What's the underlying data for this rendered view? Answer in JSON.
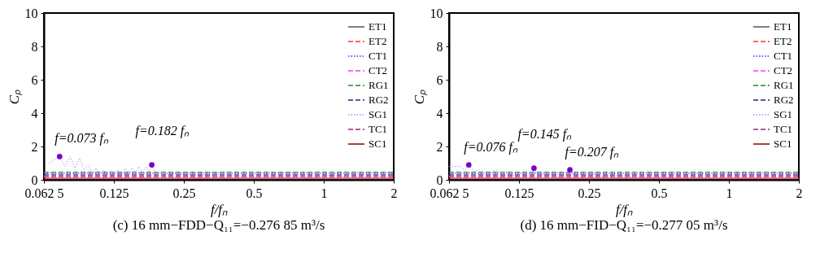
{
  "chart_data": [
    {
      "type": "line",
      "title": "(c) 16 mm−FDD−Q₁₁=−0.276 85 m³/s",
      "xlabel": "f/fₙ",
      "ylabel": "Cₚ",
      "log": "x",
      "xlim": [
        0.0625,
        2
      ],
      "xticks": [
        {
          "value": 0.0625,
          "label": "0.062 5"
        },
        0.125,
        0.25,
        0.5,
        1,
        2
      ],
      "ylim": [
        0,
        10
      ],
      "yticks": [
        0,
        2,
        4,
        6,
        8,
        10
      ],
      "grid": false,
      "legend": "top right",
      "marker": "none",
      "annotations": [
        {
          "text": "f=0.073 fₙ",
          "x": 0.073,
          "y": 1.4
        },
        {
          "text": "f=0.182 fₙ",
          "x": 0.182,
          "y": 0.9
        }
      ],
      "series": [
        {
          "name": "ET1",
          "color": "#555555",
          "line_style": "solid",
          "x": [
            0.0625,
            0.08,
            0.1,
            0.125,
            0.16,
            0.2,
            0.25,
            0.32,
            0.4,
            0.5,
            0.63,
            0.8,
            1,
            1.26,
            1.6,
            2
          ],
          "values": [
            0.1,
            0.1,
            0.1,
            0.1,
            0.1,
            0.1,
            0.1,
            0.1,
            0.1,
            0.1,
            0.1,
            0.1,
            0.1,
            0.1,
            0.1,
            0.1
          ]
        },
        {
          "name": "ET2",
          "color": "#ff3333",
          "line_style": "dashed",
          "x": [
            0.0625,
            0.08,
            0.1,
            0.125,
            0.16,
            0.2,
            0.25,
            0.32,
            0.4,
            0.5,
            0.63,
            0.8,
            1,
            1.26,
            1.6,
            2
          ],
          "values": [
            0.16,
            0.16,
            0.16,
            0.16,
            0.16,
            0.16,
            0.16,
            0.16,
            0.16,
            0.16,
            0.16,
            0.16,
            0.16,
            0.16,
            0.16,
            0.16
          ]
        },
        {
          "name": "CT1",
          "color": "#3333ff",
          "line_style": "dotted",
          "x": [
            0.0625,
            0.08,
            0.1,
            0.125,
            0.16,
            0.2,
            0.25,
            0.32,
            0.4,
            0.5,
            0.63,
            0.8,
            1,
            1.26,
            1.6,
            2
          ],
          "values": [
            0.4,
            0.4,
            0.4,
            0.4,
            0.4,
            0.4,
            0.4,
            0.4,
            0.4,
            0.4,
            0.4,
            0.4,
            0.4,
            0.4,
            0.4,
            0.4
          ]
        },
        {
          "name": "CT2",
          "color": "#ff33ff",
          "line_style": "dashed",
          "x": [
            0.0625,
            0.08,
            0.1,
            0.125,
            0.16,
            0.2,
            0.25,
            0.32,
            0.4,
            0.5,
            0.63,
            0.8,
            1,
            1.26,
            1.6,
            2
          ],
          "values": [
            0.22,
            0.22,
            0.22,
            0.22,
            0.22,
            0.22,
            0.22,
            0.22,
            0.22,
            0.22,
            0.22,
            0.22,
            0.22,
            0.22,
            0.22,
            0.22
          ]
        },
        {
          "name": "RG1",
          "color": "#228822",
          "line_style": "dashed",
          "x": [
            0.0625,
            0.08,
            0.1,
            0.125,
            0.16,
            0.2,
            0.25,
            0.32,
            0.4,
            0.5,
            0.63,
            0.8,
            1,
            1.26,
            1.6,
            2
          ],
          "values": [
            0.46,
            0.46,
            0.46,
            0.46,
            0.46,
            0.46,
            0.46,
            0.46,
            0.46,
            0.46,
            0.46,
            0.46,
            0.46,
            0.46,
            0.46,
            0.46
          ]
        },
        {
          "name": "RG2",
          "color": "#222288",
          "line_style": "dashed",
          "x": [
            0.0625,
            0.08,
            0.1,
            0.125,
            0.16,
            0.2,
            0.25,
            0.32,
            0.4,
            0.5,
            0.63,
            0.8,
            1,
            1.26,
            1.6,
            2
          ],
          "values": [
            0.34,
            0.34,
            0.34,
            0.34,
            0.34,
            0.34,
            0.34,
            0.34,
            0.34,
            0.34,
            0.34,
            0.34,
            0.34,
            0.34,
            0.34,
            0.34
          ]
        },
        {
          "name": "SG1",
          "color": "#bb88ff",
          "line_style": "dotted",
          "x": [
            0.066,
            0.073,
            0.077,
            0.081,
            0.085,
            0.089,
            0.093,
            0.097,
            0.101,
            0.105,
            0.109,
            0.113,
            0.117,
            0.121,
            0.126,
            0.13,
            0.135,
            0.14,
            0.145,
            0.15,
            0.155,
            0.16,
            0.166,
            0.172,
            0.177,
            0.182,
            0.19,
            0.2,
            0.21,
            0.22,
            0.24,
            0.26,
            0.28,
            0.31,
            0.35,
            0.4,
            0.5,
            0.6,
            0.8,
            1.0,
            1.1,
            1.3,
            1.6,
            2.0
          ],
          "values": [
            1.0,
            1.4,
            0.8,
            1.4,
            0.7,
            1.3,
            0.6,
            0.9,
            0.4,
            0.7,
            0.4,
            0.6,
            0.3,
            0.6,
            0.35,
            0.6,
            0.3,
            0.7,
            0.35,
            0.75,
            0.4,
            0.8,
            0.45,
            0.8,
            0.5,
            0.9,
            0.4,
            0.5,
            0.3,
            0.45,
            0.3,
            0.4,
            0.25,
            0.3,
            0.2,
            0.25,
            0.15,
            0.2,
            0.15,
            0.2,
            0.3,
            0.15,
            0.2,
            0.2
          ]
        },
        {
          "name": "TC1",
          "color": "#992288",
          "line_style": "dashed",
          "x": [
            0.0625,
            0.08,
            0.1,
            0.125,
            0.16,
            0.2,
            0.25,
            0.32,
            0.4,
            0.5,
            0.63,
            0.8,
            1,
            1.26,
            1.6,
            2
          ],
          "values": [
            0.28,
            0.28,
            0.28,
            0.28,
            0.28,
            0.28,
            0.28,
            0.28,
            0.28,
            0.28,
            0.28,
            0.28,
            0.28,
            0.28,
            0.28,
            0.28
          ]
        },
        {
          "name": "SC1",
          "color": "#8b0000",
          "line_style": "solid",
          "x": [
            0.0625,
            0.08,
            0.1,
            0.125,
            0.16,
            0.2,
            0.25,
            0.32,
            0.4,
            0.5,
            0.63,
            0.8,
            1,
            1.26,
            1.6,
            2
          ],
          "values": [
            0.04,
            0.04,
            0.04,
            0.04,
            0.04,
            0.04,
            0.04,
            0.04,
            0.04,
            0.04,
            0.04,
            0.04,
            0.04,
            0.04,
            0.04,
            0.04
          ]
        }
      ]
    },
    {
      "type": "line",
      "title": "(d) 16 mm−FID−Q₁₁=−0.277 05 m³/s",
      "xlabel": "f/fₙ",
      "ylabel": "Cₚ",
      "log": "x",
      "xlim": [
        0.0625,
        2
      ],
      "xticks": [
        {
          "value": 0.0625,
          "label": "0.062 5"
        },
        0.125,
        0.25,
        0.5,
        1,
        2
      ],
      "ylim": [
        0,
        10
      ],
      "yticks": [
        0,
        2,
        4,
        6,
        8,
        10
      ],
      "grid": false,
      "legend": "top right",
      "marker": "none",
      "annotations": [
        {
          "text": "f=0.076 fₙ",
          "x": 0.076,
          "y": 0.9
        },
        {
          "text": "f=0.145 fₙ",
          "x": 0.145,
          "y": 0.7
        },
        {
          "text": "f=0.207 fₙ",
          "x": 0.207,
          "y": 0.6
        }
      ],
      "series": [
        {
          "name": "ET1",
          "color": "#555555",
          "line_style": "solid",
          "x": [
            0.0625,
            0.08,
            0.1,
            0.125,
            0.16,
            0.2,
            0.25,
            0.32,
            0.4,
            0.5,
            0.63,
            0.8,
            1,
            1.26,
            1.6,
            2
          ],
          "values": [
            0.1,
            0.1,
            0.1,
            0.1,
            0.1,
            0.1,
            0.1,
            0.1,
            0.1,
            0.1,
            0.1,
            0.1,
            0.1,
            0.1,
            0.1,
            0.1
          ]
        },
        {
          "name": "ET2",
          "color": "#ff3333",
          "line_style": "dashed",
          "x": [
            0.0625,
            0.08,
            0.1,
            0.125,
            0.16,
            0.2,
            0.25,
            0.32,
            0.4,
            0.5,
            0.63,
            0.8,
            1,
            1.26,
            1.6,
            2
          ],
          "values": [
            0.16,
            0.16,
            0.16,
            0.16,
            0.16,
            0.16,
            0.16,
            0.16,
            0.16,
            0.16,
            0.16,
            0.16,
            0.16,
            0.16,
            0.16,
            0.16
          ]
        },
        {
          "name": "CT1",
          "color": "#3333ff",
          "line_style": "dotted",
          "x": [
            0.0625,
            0.08,
            0.1,
            0.125,
            0.16,
            0.2,
            0.25,
            0.32,
            0.4,
            0.5,
            0.63,
            0.8,
            1,
            1.26,
            1.6,
            2
          ],
          "values": [
            0.4,
            0.4,
            0.4,
            0.4,
            0.4,
            0.4,
            0.4,
            0.4,
            0.4,
            0.4,
            0.4,
            0.4,
            0.4,
            0.4,
            0.4,
            0.4
          ]
        },
        {
          "name": "CT2",
          "color": "#ff33ff",
          "line_style": "dashed",
          "x": [
            0.0625,
            0.08,
            0.1,
            0.125,
            0.16,
            0.2,
            0.25,
            0.32,
            0.4,
            0.5,
            0.63,
            0.8,
            1,
            1.26,
            1.6,
            2
          ],
          "values": [
            0.22,
            0.22,
            0.22,
            0.22,
            0.22,
            0.22,
            0.22,
            0.22,
            0.22,
            0.22,
            0.22,
            0.22,
            0.22,
            0.22,
            0.22,
            0.22
          ]
        },
        {
          "name": "RG1",
          "color": "#228822",
          "line_style": "dashed",
          "x": [
            0.0625,
            0.08,
            0.1,
            0.125,
            0.16,
            0.2,
            0.25,
            0.32,
            0.4,
            0.5,
            0.63,
            0.8,
            1,
            1.26,
            1.6,
            2
          ],
          "values": [
            0.46,
            0.46,
            0.46,
            0.46,
            0.46,
            0.46,
            0.46,
            0.46,
            0.46,
            0.46,
            0.46,
            0.46,
            0.46,
            0.46,
            0.46,
            0.46
          ]
        },
        {
          "name": "RG2",
          "color": "#222288",
          "line_style": "dashed",
          "x": [
            0.0625,
            0.08,
            0.1,
            0.125,
            0.16,
            0.2,
            0.25,
            0.32,
            0.4,
            0.5,
            0.63,
            0.8,
            1,
            1.26,
            1.6,
            2
          ],
          "values": [
            0.34,
            0.34,
            0.34,
            0.34,
            0.34,
            0.34,
            0.34,
            0.34,
            0.34,
            0.34,
            0.34,
            0.34,
            0.34,
            0.34,
            0.34,
            0.34
          ]
        },
        {
          "name": "SG1",
          "color": "#bb88ff",
          "line_style": "dotted",
          "x": [
            0.0625,
            0.07,
            0.073,
            0.076,
            0.08,
            0.085,
            0.09,
            0.095,
            0.1,
            0.105,
            0.11,
            0.115,
            0.12,
            0.125,
            0.13,
            0.135,
            0.14,
            0.145,
            0.15,
            0.155,
            0.16,
            0.17,
            0.18,
            0.19,
            0.2,
            0.207,
            0.215,
            0.225,
            0.24,
            0.26,
            0.28,
            0.32,
            0.4,
            0.5,
            0.7,
            1,
            1.4,
            2
          ],
          "values": [
            0.8,
            0.8,
            0.6,
            0.9,
            0.5,
            0.6,
            0.3,
            0.5,
            0.6,
            0.4,
            0.5,
            0.25,
            0.3,
            0.1,
            0.2,
            0.15,
            0.3,
            0.7,
            0.3,
            0.5,
            0.2,
            0.3,
            0.15,
            0.25,
            0.3,
            0.6,
            0.3,
            0.4,
            0.25,
            0.35,
            0.2,
            0.25,
            0.15,
            0.15,
            0.1,
            0.12,
            0.1,
            0.1
          ]
        },
        {
          "name": "TC1",
          "color": "#992288",
          "line_style": "dashed",
          "x": [
            0.0625,
            0.08,
            0.1,
            0.125,
            0.16,
            0.2,
            0.25,
            0.32,
            0.4,
            0.5,
            0.63,
            0.8,
            1,
            1.26,
            1.6,
            2
          ],
          "values": [
            0.28,
            0.28,
            0.28,
            0.28,
            0.28,
            0.28,
            0.28,
            0.28,
            0.28,
            0.28,
            0.28,
            0.28,
            0.28,
            0.28,
            0.28,
            0.28
          ]
        },
        {
          "name": "SC1",
          "color": "#8b0000",
          "line_style": "solid",
          "x": [
            0.0625,
            0.08,
            0.1,
            0.125,
            0.16,
            0.2,
            0.25,
            0.32,
            0.4,
            0.5,
            0.63,
            0.8,
            1,
            1.26,
            1.6,
            2
          ],
          "values": [
            0.04,
            0.04,
            0.04,
            0.04,
            0.04,
            0.04,
            0.04,
            0.04,
            0.04,
            0.04,
            0.04,
            0.04,
            0.04,
            0.04,
            0.04,
            0.04
          ]
        }
      ]
    }
  ]
}
